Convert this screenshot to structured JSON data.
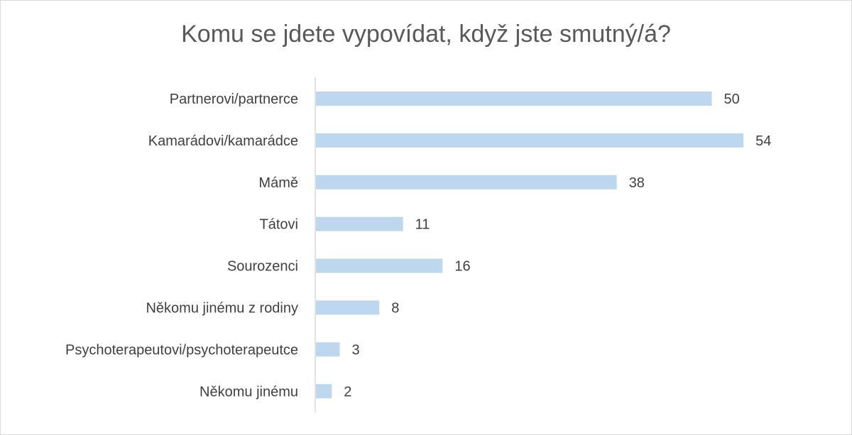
{
  "chart_data": {
    "type": "bar",
    "orientation": "horizontal",
    "title": "Komu se jdete vypovídat, když jste smutný/á?",
    "categories": [
      "Partnerovi/partnerce",
      "Kamarádovi/kamarádce",
      "Mámě",
      "Tátovi",
      "Sourozenci",
      "Někomu jinému z rodiny",
      "Psychoterapeutovi/psychoterapeutce",
      "Někomu jinému"
    ],
    "values": [
      50,
      54,
      38,
      11,
      16,
      8,
      3,
      2
    ],
    "bar_color": "#bdd7ee",
    "axis_color": "#d9d9d9",
    "grid": false,
    "legend": "none"
  }
}
